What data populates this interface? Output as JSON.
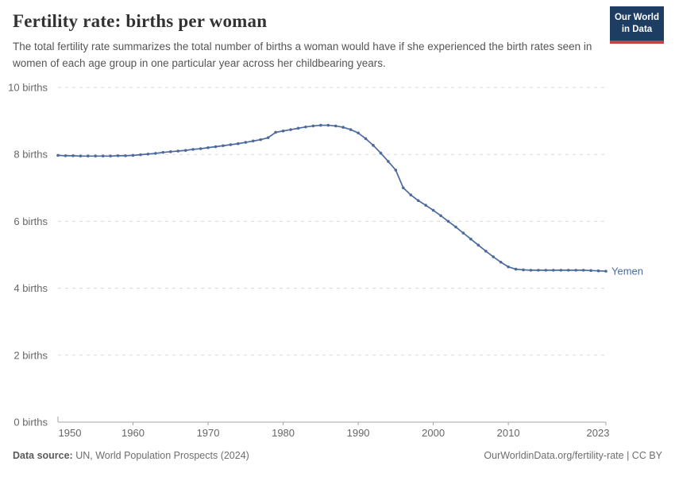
{
  "header": {
    "title": "Fertility rate: births per woman",
    "subtitle": "The total fertility rate summarizes the total number of births a woman would have if she experienced the birth rates seen in women of each age group in one particular year across her childbearing years."
  },
  "logo": {
    "line1": "Our World",
    "line2": "in Data",
    "bg_color": "#1d3d63",
    "accent_color": "#c0434d"
  },
  "chart_data": {
    "type": "line",
    "title": "Fertility rate: births per woman",
    "entity_label": "Yemen",
    "x": [
      1950,
      1951,
      1952,
      1953,
      1954,
      1955,
      1956,
      1957,
      1958,
      1959,
      1960,
      1961,
      1962,
      1963,
      1964,
      1965,
      1966,
      1967,
      1968,
      1969,
      1970,
      1971,
      1972,
      1973,
      1974,
      1975,
      1976,
      1977,
      1978,
      1979,
      1980,
      1981,
      1982,
      1983,
      1984,
      1985,
      1986,
      1987,
      1988,
      1989,
      1990,
      1991,
      1992,
      1993,
      1994,
      1995,
      1996,
      1997,
      1998,
      1999,
      2000,
      2001,
      2002,
      2003,
      2004,
      2005,
      2006,
      2007,
      2008,
      2009,
      2010,
      2011,
      2012,
      2013,
      2014,
      2015,
      2016,
      2017,
      2018,
      2019,
      2020,
      2021,
      2022,
      2023
    ],
    "series": [
      {
        "name": "Yemen",
        "color": "#4c6a9c",
        "values": [
          7.97,
          7.96,
          7.96,
          7.95,
          7.95,
          7.95,
          7.95,
          7.95,
          7.96,
          7.96,
          7.97,
          7.99,
          8.01,
          8.03,
          8.06,
          8.08,
          8.1,
          8.12,
          8.15,
          8.17,
          8.2,
          8.23,
          8.26,
          8.29,
          8.32,
          8.36,
          8.4,
          8.44,
          8.5,
          8.66,
          8.7,
          8.74,
          8.78,
          8.82,
          8.85,
          8.87,
          8.87,
          8.85,
          8.81,
          8.74,
          8.64,
          8.47,
          8.27,
          8.04,
          7.79,
          7.53,
          7.0,
          6.79,
          6.62,
          6.48,
          6.33,
          6.17,
          6.0,
          5.83,
          5.65,
          5.47,
          5.29,
          5.11,
          4.94,
          4.78,
          4.64,
          4.57,
          4.55,
          4.54,
          4.54,
          4.54,
          4.54,
          4.54,
          4.54,
          4.54,
          4.54,
          4.53,
          4.52,
          4.51
        ]
      }
    ],
    "ylim": [
      0,
      10
    ],
    "y_ticks": [
      0,
      2,
      4,
      6,
      8,
      10
    ],
    "y_tick_suffix": " births",
    "x_ticks": [
      1950,
      1960,
      1970,
      1980,
      1990,
      2000,
      2010,
      2023
    ],
    "grid": "horizontal-dashed",
    "legend_position": "end-of-line",
    "colors": {
      "gridline": "#d9d9d9",
      "axis": "#a3a3a3",
      "tick_label": "#666666"
    }
  },
  "footer": {
    "source_label": "Data source:",
    "source_text": " UN, World Population Prospects (2024)",
    "link_text": "OurWorldinData.org/fertility-rate | CC BY"
  }
}
